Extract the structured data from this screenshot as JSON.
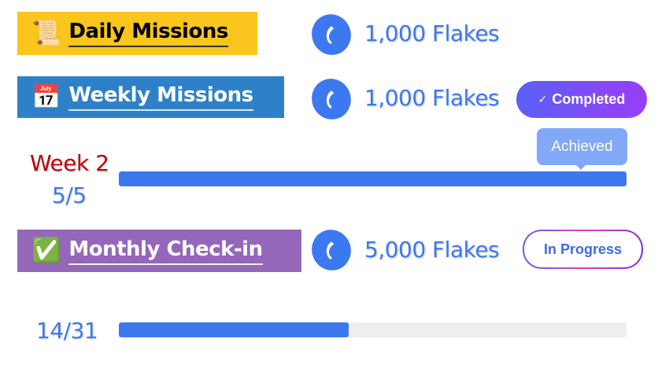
{
  "daily": {
    "icon": "scroll-icon",
    "emoji": "📜",
    "title": "Daily Missions",
    "reward": "1,000 Flakes"
  },
  "weekly": {
    "icon": "calendar-icon",
    "emoji": "📅",
    "title": "Weekly Missions",
    "reward": "1,000 Flakes",
    "status": "Completed",
    "status_check": "✓",
    "tooltip": "Achieved",
    "week_label": "Week 2",
    "progress_text": "5/5",
    "progress": 1.0
  },
  "monthly": {
    "icon": "check-box-icon",
    "emoji": "✅",
    "title": "Monthly Check-in",
    "reward": "5,000 Flakes",
    "status": "In Progress",
    "progress_text": "14/31",
    "progress": 0.452
  },
  "colors": {
    "daily_bg": "#FAC51C",
    "weekly_bg": "#2E81C9",
    "monthly_bg": "#9467BA",
    "accent": "#3C78F0",
    "week_label": "#C00000"
  }
}
